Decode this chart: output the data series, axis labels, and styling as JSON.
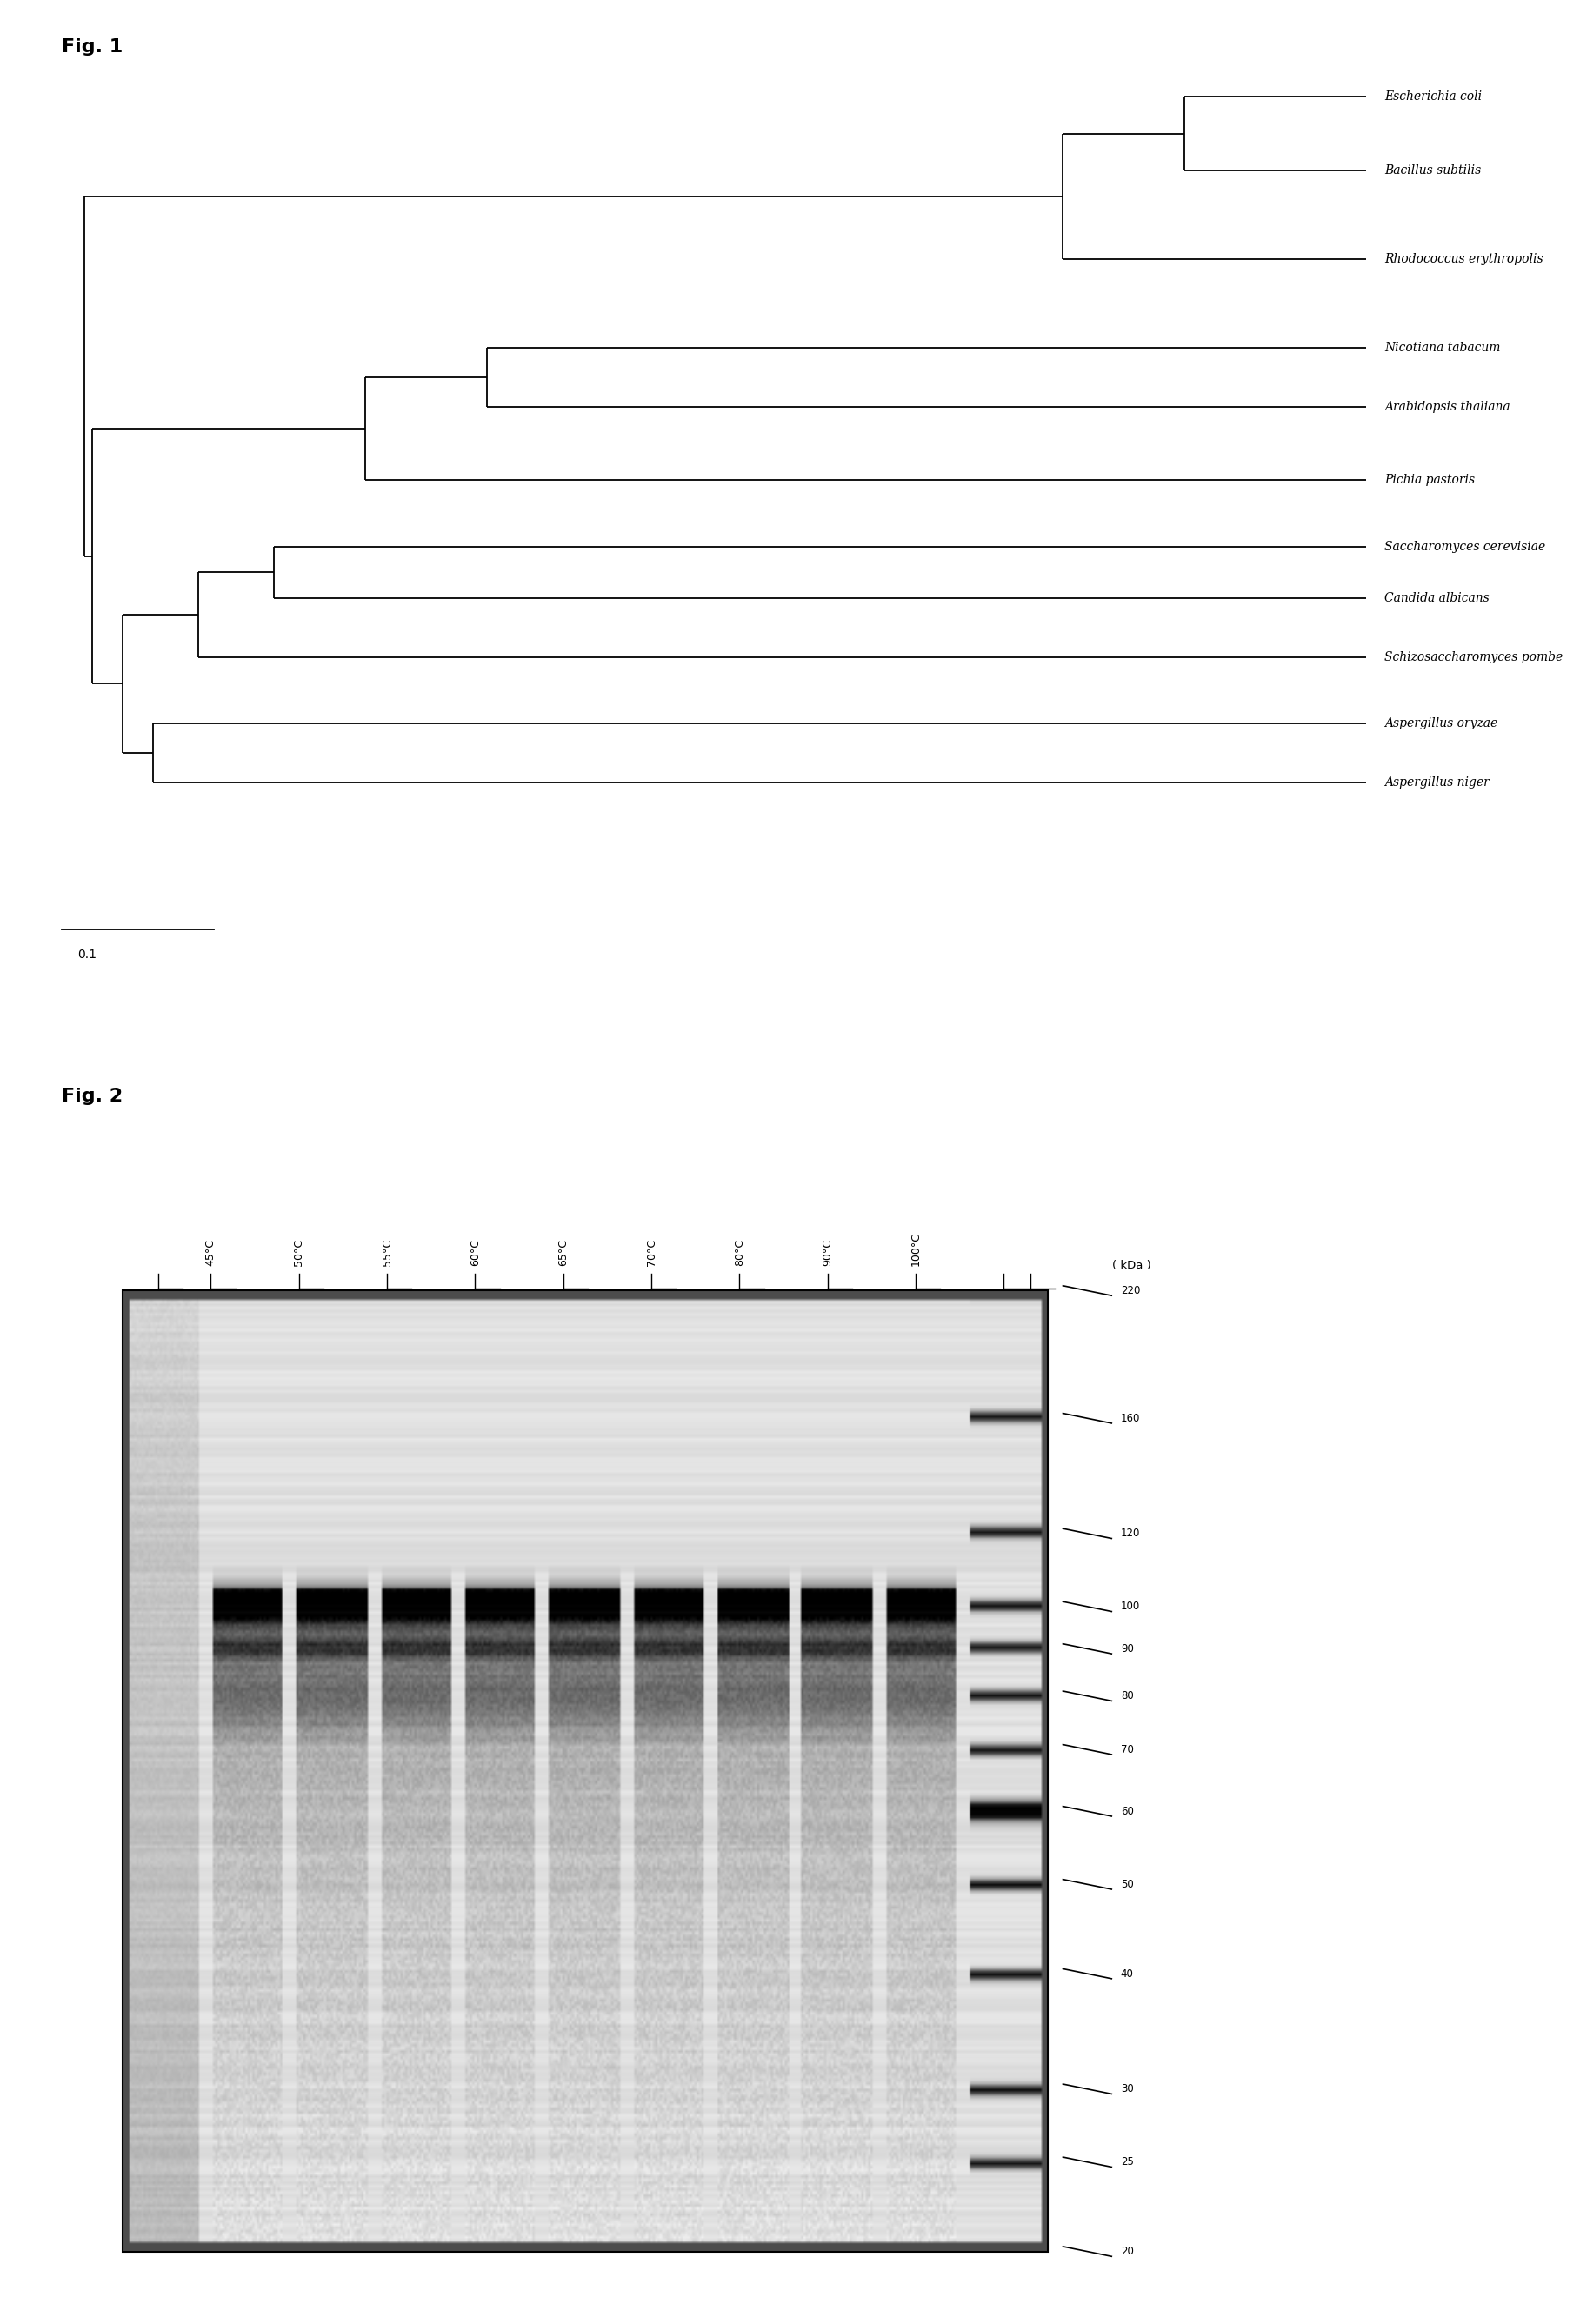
{
  "fig1_label": "Fig. 1",
  "fig2_label": "Fig. 2",
  "tree": {
    "taxa": [
      "Escherichia coli",
      "Bacillus subtilis",
      "Rhodococcus erythropolis",
      "Nicotiana tabacum",
      "Arabidopsis thaliana",
      "Pichia pastoris",
      "Saccharomyces cerevisiae",
      "Candida albicans",
      "Schizosaccharomyces pombe",
      "Aspergillus oryzae",
      "Aspergillus niger"
    ],
    "scale_bar_label": "0.1"
  },
  "gel": {
    "temperatures": [
      "45°C",
      "50°C",
      "55°C",
      "60°C",
      "65°C",
      "70°C",
      "80°C",
      "90°C",
      "100°C"
    ],
    "marker_label": "( kDa )",
    "marker_values": [
      220,
      160,
      120,
      100,
      90,
      80,
      70,
      60,
      50,
      40,
      30,
      25,
      20
    ]
  },
  "colors": {
    "tree_line": "black",
    "background": "white"
  },
  "fig_width": 18.17,
  "fig_height": 26.73,
  "tree_font_size": 10,
  "fig_label_font_size": 16
}
